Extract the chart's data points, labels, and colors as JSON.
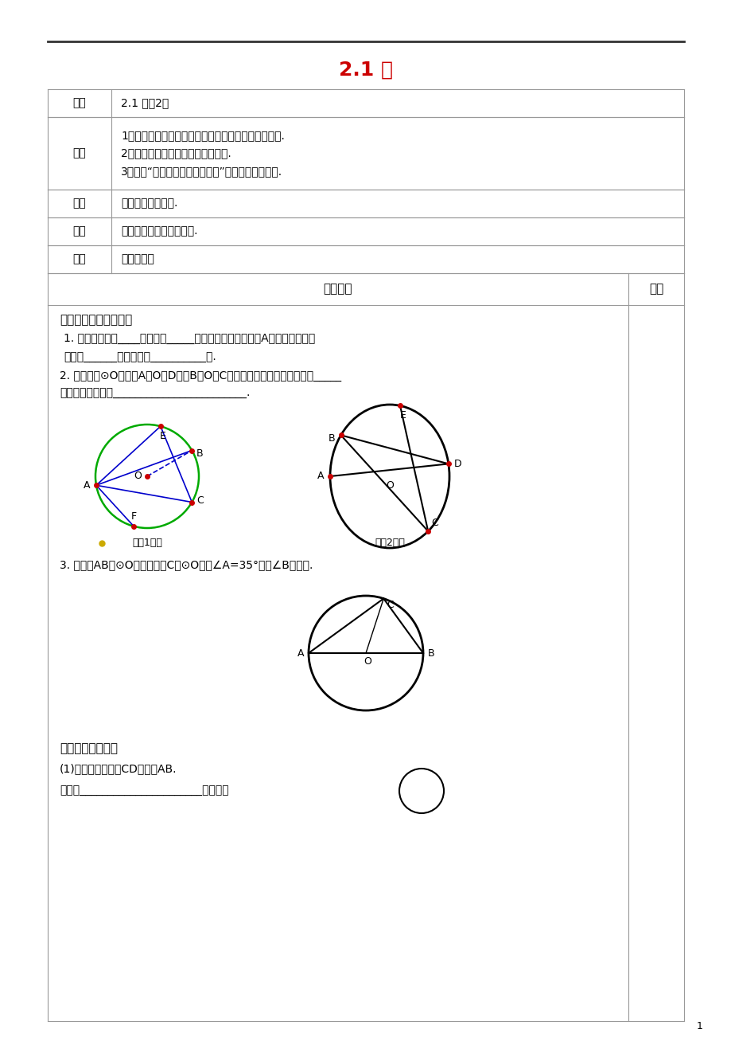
{
  "title": "2.1 圆",
  "title_color": "#cc0000",
  "title_fontsize": 18,
  "page_number": "1",
  "bg_color": "#ffffff",
  "text_color": "#000000",
  "table_border_color": "#999999",
  "header_line_color": "#333333",
  "row_keti_content": "2.1 圆（2）",
  "row_mubiao_lines": [
    "1．认识圆的弦、弧、优弧与劣弧、直径及其有关概念.",
    "2．认识圆心角、等圆、等弧的概念.",
    "3．了解“同圆或等圆的半径相等”并能用之解决问题."
  ],
  "row_zhongdian_content": "了解圆的相关概念.",
  "row_nandian_content": "容易混淡圆的概念的辨析.",
  "row_jiaof_content": "讨论、交流",
  "header_jxgc": "教学过程",
  "header_bz": "备注",
  "sec1_title": "一、》学前预习反馈》",
  "q1_line1": "1. 如图，图中有____条直径，_____条非直径的弦，圆中以A为端点的弧中，",
  "q1_line2": "优弧有______条，劣弧有__________条.",
  "q2_line1": "2. 如图，在⊙O中，点A、O、D和点B、O、C分别在一条直线上，图中共有_____",
  "q2_line2": "条弦，它们分别是________________________.",
  "fig1_caption": "（第1题）",
  "fig2_caption": "（第2题）",
  "q3_line1": "3. 如图，AB是⊙O的直径，点C在⊙O上，∠A=35°，求∠B的度数.",
  "sec2_title": "二、》新知探求》",
  "s2_q1a": "(1)请在图上画出弦CD，直径AB.",
  "s2_q1b": "并说明______________________叫做弦；"
}
